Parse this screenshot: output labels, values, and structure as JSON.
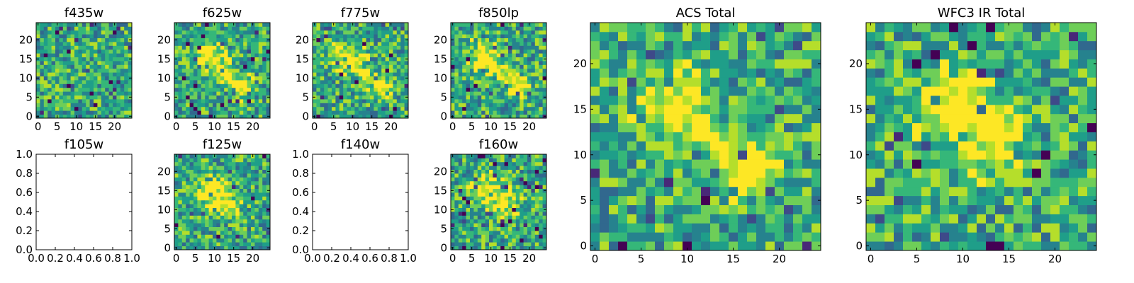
{
  "figure": {
    "description_title": ""
  },
  "chart_data": [
    {
      "type": "heatmap",
      "title": "f435w",
      "grid": 25,
      "has_data": true,
      "xticks": [
        "0",
        "5",
        "10",
        "15",
        "20"
      ],
      "yticks": [
        "0",
        "5",
        "10",
        "15",
        "20"
      ],
      "xlim": [
        -0.5,
        24.5
      ],
      "ylim": [
        -0.5,
        24.5
      ],
      "blob": "none",
      "seed": 11
    },
    {
      "type": "heatmap",
      "title": "f625w",
      "grid": 25,
      "has_data": true,
      "xticks": [
        "0",
        "5",
        "10",
        "15",
        "20"
      ],
      "yticks": [
        "0",
        "5",
        "10",
        "15",
        "20"
      ],
      "xlim": [
        -0.5,
        24.5
      ],
      "ylim": [
        -0.5,
        24.5
      ],
      "blob": "diag",
      "seed": 23
    },
    {
      "type": "heatmap",
      "title": "f775w",
      "grid": 25,
      "has_data": true,
      "xticks": [
        "0",
        "5",
        "10",
        "15",
        "20"
      ],
      "yticks": [
        "0",
        "5",
        "10",
        "15",
        "20"
      ],
      "xlim": [
        -0.5,
        24.5
      ],
      "ylim": [
        -0.5,
        24.5
      ],
      "blob": "diag",
      "seed": 37
    },
    {
      "type": "heatmap",
      "title": "f850lp",
      "grid": 25,
      "has_data": true,
      "xticks": [
        "0",
        "5",
        "10",
        "15",
        "20"
      ],
      "yticks": [
        "0",
        "5",
        "10",
        "15",
        "20"
      ],
      "xlim": [
        -0.5,
        24.5
      ],
      "ylim": [
        -0.5,
        24.5
      ],
      "blob": "diag",
      "seed": 41
    },
    {
      "type": "heatmap",
      "title": "f105w",
      "grid": 0,
      "has_data": false,
      "xticks": [
        "0.0",
        "0.2",
        "0.4",
        "0.6",
        "0.8",
        "1.0"
      ],
      "yticks": [
        "0.0",
        "0.2",
        "0.4",
        "0.6",
        "0.8",
        "1.0"
      ],
      "xlim": [
        0,
        1
      ],
      "ylim": [
        0,
        1
      ],
      "blob": "none",
      "seed": 0
    },
    {
      "type": "heatmap",
      "title": "f125w",
      "grid": 25,
      "has_data": true,
      "xticks": [
        "0",
        "5",
        "10",
        "15",
        "20"
      ],
      "yticks": [
        "0",
        "5",
        "10",
        "15",
        "20"
      ],
      "xlim": [
        -0.5,
        24.5
      ],
      "ylim": [
        -0.5,
        24.5
      ],
      "blob": "ir",
      "seed": 53
    },
    {
      "type": "heatmap",
      "title": "f140w",
      "grid": 0,
      "has_data": false,
      "xticks": [
        "0.0",
        "0.2",
        "0.4",
        "0.6",
        "0.8",
        "1.0"
      ],
      "yticks": [
        "0.0",
        "0.2",
        "0.4",
        "0.6",
        "0.8",
        "1.0"
      ],
      "xlim": [
        0,
        1
      ],
      "ylim": [
        0,
        1
      ],
      "blob": "none",
      "seed": 0
    },
    {
      "type": "heatmap",
      "title": "f160w",
      "grid": 25,
      "has_data": true,
      "xticks": [
        "0",
        "5",
        "10",
        "15",
        "20"
      ],
      "yticks": [
        "0",
        "5",
        "10",
        "15",
        "20"
      ],
      "xlim": [
        -0.5,
        24.5
      ],
      "ylim": [
        -0.5,
        24.5
      ],
      "blob": "ir",
      "seed": 67
    },
    {
      "type": "heatmap",
      "title": "ACS Total",
      "grid": 25,
      "has_data": true,
      "xticks": [
        "0",
        "5",
        "10",
        "15",
        "20"
      ],
      "yticks": [
        "0",
        "5",
        "10",
        "15",
        "20"
      ],
      "xlim": [
        -0.5,
        24.5
      ],
      "ylim": [
        -0.5,
        24.5
      ],
      "blob": "diag",
      "seed": 79
    },
    {
      "type": "heatmap",
      "title": "WFC3 IR Total",
      "grid": 25,
      "has_data": true,
      "xticks": [
        "0",
        "5",
        "10",
        "15",
        "20"
      ],
      "yticks": [
        "0",
        "5",
        "10",
        "15",
        "20"
      ],
      "xlim": [
        -0.5,
        24.5
      ],
      "ylim": [
        -0.5,
        24.5
      ],
      "blob": "ir",
      "seed": 97
    }
  ],
  "colormap": [
    "#440154",
    "#482878",
    "#3e4a89",
    "#31688e",
    "#26828e",
    "#1f9e89",
    "#35b779",
    "#6ece58",
    "#b5de2b",
    "#fde725"
  ]
}
